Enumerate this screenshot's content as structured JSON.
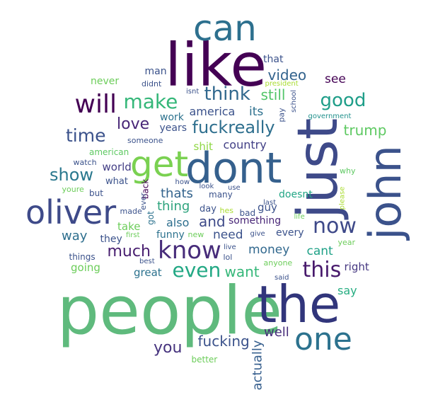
{
  "palette": [
    "#440154",
    "#472a7a",
    "#3b518b",
    "#2c718e",
    "#21918c",
    "#27ad81",
    "#5cc863",
    "#aadc32"
  ],
  "words": [
    {
      "text": "people",
      "color": "#5fba7d"
    },
    {
      "text": "like",
      "color": "#440154"
    },
    {
      "text": "just",
      "color": "#3e4a89"
    },
    {
      "text": "the",
      "color": "#31357b"
    },
    {
      "text": "dont",
      "color": "#35608d"
    },
    {
      "text": "john",
      "color": "#3b528b"
    },
    {
      "text": "oliver",
      "color": "#3e4a89"
    },
    {
      "text": "can",
      "color": "#2d708e"
    },
    {
      "text": "one",
      "color": "#2c728e"
    },
    {
      "text": "get",
      "color": "#7ad151"
    },
    {
      "text": "know",
      "color": "#472c7a"
    },
    {
      "text": "will",
      "color": "#440154"
    },
    {
      "text": "now",
      "color": "#3e4989"
    },
    {
      "text": "this",
      "color": "#481a6c"
    },
    {
      "text": "make",
      "color": "#35b779"
    },
    {
      "text": "even",
      "color": "#22a884"
    },
    {
      "text": "think",
      "color": "#31688e"
    },
    {
      "text": "good",
      "color": "#1f9e89"
    },
    {
      "text": "fuckreally",
      "color": "#2e6f8e"
    },
    {
      "text": "time",
      "color": "#3b528b"
    },
    {
      "text": "show",
      "color": "#2a788e"
    },
    {
      "text": "love",
      "color": "#482677"
    },
    {
      "text": "you",
      "color": "#46337e"
    },
    {
      "text": "much",
      "color": "#481f70"
    },
    {
      "text": "fucking",
      "color": "#3b528b"
    },
    {
      "text": "want",
      "color": "#35b779"
    },
    {
      "text": "video",
      "color": "#33638d"
    },
    {
      "text": "trump",
      "color": "#5ec962"
    },
    {
      "text": "and",
      "color": "#3e4a89"
    },
    {
      "text": "still",
      "color": "#52c569"
    },
    {
      "text": "well",
      "color": "#472d7b"
    },
    {
      "text": "actually",
      "color": "#355e8d"
    },
    {
      "text": "thats",
      "color": "#33638d"
    },
    {
      "text": "thing",
      "color": "#2ea37d"
    },
    {
      "text": "money",
      "color": "#31688e"
    },
    {
      "text": "country",
      "color": "#424086"
    },
    {
      "text": "cant",
      "color": "#1fa187"
    },
    {
      "text": "say",
      "color": "#26ad81"
    },
    {
      "text": "its",
      "color": "#2d708e"
    },
    {
      "text": "see",
      "color": "#440154"
    },
    {
      "text": "need",
      "color": "#3b528b"
    },
    {
      "text": "way",
      "color": "#2e6f8e"
    },
    {
      "text": "also",
      "color": "#2e6f8e"
    },
    {
      "text": "right",
      "color": "#453781"
    },
    {
      "text": "shit",
      "color": "#8fd744"
    },
    {
      "text": "america",
      "color": "#3b528b"
    },
    {
      "text": "world",
      "color": "#433e85"
    },
    {
      "text": "guy",
      "color": "#3b528b"
    },
    {
      "text": "every",
      "color": "#3b528b"
    },
    {
      "text": "going",
      "color": "#6ccd5a"
    },
    {
      "text": "never",
      "color": "#6ccd5a"
    },
    {
      "text": "years",
      "color": "#3b528b"
    },
    {
      "text": "that",
      "color": "#3b528b"
    },
    {
      "text": "great",
      "color": "#2c728e"
    },
    {
      "text": "work",
      "color": "#2c728e"
    },
    {
      "text": "take",
      "color": "#6ccd5a"
    },
    {
      "text": "man",
      "color": "#3b528b"
    },
    {
      "text": "doesnt",
      "color": "#21a685"
    },
    {
      "text": "something",
      "color": "#482677"
    },
    {
      "text": "they",
      "color": "#3b528b"
    },
    {
      "text": "funny",
      "color": "#2c728e"
    },
    {
      "text": "day",
      "color": "#3b528b"
    },
    {
      "text": "what",
      "color": "#3b528b"
    },
    {
      "text": "things",
      "color": "#3b528b"
    },
    {
      "text": "back",
      "color": "#440154"
    },
    {
      "text": "many",
      "color": "#3b528b"
    },
    {
      "text": "but",
      "color": "#3b528b"
    },
    {
      "text": "got",
      "color": "#2c728e"
    },
    {
      "text": "bad",
      "color": "#3b528b"
    },
    {
      "text": "isnt",
      "color": "#3b528b"
    },
    {
      "text": "didnt",
      "color": "#3b528b"
    },
    {
      "text": "pay",
      "color": "#3b528b"
    },
    {
      "text": "someone",
      "color": "#3b528b"
    },
    {
      "text": "american",
      "color": "#5ec962"
    },
    {
      "text": "watch",
      "color": "#3b528b"
    },
    {
      "text": "why",
      "color": "#5ec962"
    },
    {
      "text": "youre",
      "color": "#6ccd5a"
    },
    {
      "text": "made",
      "color": "#3b528b"
    },
    {
      "text": "ever",
      "color": "#3b528b"
    },
    {
      "text": "hes",
      "color": "#aadc32"
    },
    {
      "text": "last",
      "color": "#3b528b"
    },
    {
      "text": "life",
      "color": "#6ccd5a"
    },
    {
      "text": "new",
      "color": "#6ccd5a"
    },
    {
      "text": "first",
      "color": "#6ccd5a"
    },
    {
      "text": "give",
      "color": "#3b528b"
    },
    {
      "text": "lol",
      "color": "#3b528b"
    },
    {
      "text": "live",
      "color": "#3b528b"
    },
    {
      "text": "best",
      "color": "#3b528b"
    },
    {
      "text": "anyone",
      "color": "#6ccd5a"
    },
    {
      "text": "year",
      "color": "#6ccd5a"
    },
    {
      "text": "said",
      "color": "#3b528b"
    },
    {
      "text": "better",
      "color": "#6ccd5a"
    },
    {
      "text": "how",
      "color": "#3b528b"
    },
    {
      "text": "look",
      "color": "#3b528b"
    },
    {
      "text": "use",
      "color": "#3b528b"
    },
    {
      "text": "school",
      "color": "#3b528b"
    },
    {
      "text": "president",
      "color": "#aadc32"
    },
    {
      "text": "government",
      "color": "#21918c"
    },
    {
      "text": "please",
      "color": "#aadc32"
    }
  ]
}
